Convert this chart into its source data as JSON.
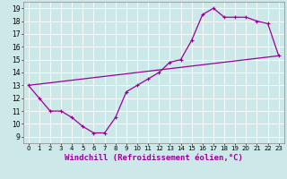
{
  "bg_color": "#cce8e8",
  "grid_color": "#ffffff",
  "line_color": "#990099",
  "xlabel": "Windchill (Refroidissement éolien,°C)",
  "xlim": [
    -0.5,
    23.5
  ],
  "ylim": [
    8.5,
    19.5
  ],
  "yticks": [
    9,
    10,
    11,
    12,
    13,
    14,
    15,
    16,
    17,
    18,
    19
  ],
  "xticks": [
    0,
    1,
    2,
    3,
    4,
    5,
    6,
    7,
    8,
    9,
    10,
    11,
    12,
    13,
    14,
    15,
    16,
    17,
    18,
    19,
    20,
    21,
    22,
    23
  ],
  "curve1_x": [
    0,
    1,
    2,
    3,
    4,
    5,
    6,
    7,
    8,
    9,
    10,
    11,
    12,
    13,
    14,
    15,
    16,
    17,
    18,
    19,
    20,
    21,
    22,
    23
  ],
  "curve1_y": [
    13,
    12,
    11,
    11,
    10.5,
    9.8,
    9.3,
    9.3,
    10.5,
    12.5,
    13.0,
    13.5,
    14.0,
    14.8,
    15.0,
    16.5,
    18.5,
    19.0,
    18.3,
    18.3,
    18.3,
    18.0,
    17.8,
    15.3
  ],
  "curve2_x": [
    0,
    23
  ],
  "curve2_y": [
    13,
    15.3
  ],
  "tick_fontsize": 5.5,
  "label_fontsize": 6.5
}
